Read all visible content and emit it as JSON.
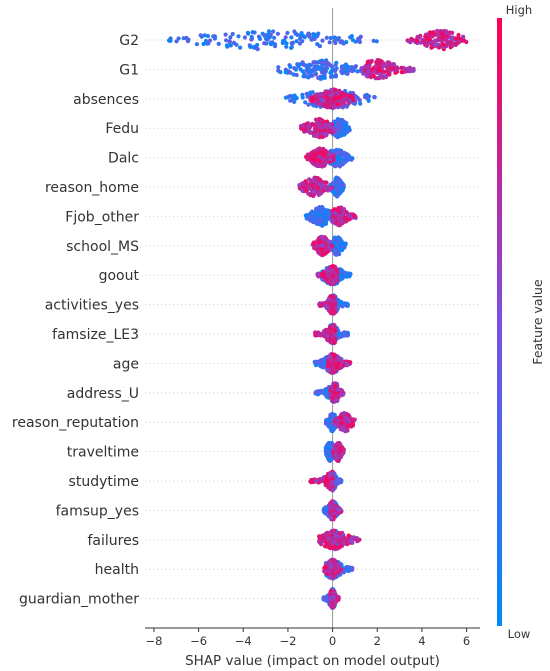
{
  "chart_data": {
    "type": "scatter",
    "subtype": "shap-beeswarm",
    "xlabel": "SHAP value (impact on model output)",
    "xlim": [
      -8.4,
      6.6
    ],
    "xticks": [
      -8,
      -6,
      -4,
      -2,
      0,
      2,
      4,
      6
    ],
    "colorbar": {
      "title": "Feature value",
      "high_label": "High",
      "low_label": "Low",
      "low_color": "#008afb",
      "mid_color": "#7c50e0",
      "high_color": "#ff0052"
    },
    "features": [
      {
        "name": "G2",
        "low_range": [
          -7.5,
          2.0
        ],
        "high_range": [
          3.3,
          6.0
        ],
        "peak": 4.8
      },
      {
        "name": "G1",
        "low_range": [
          -2.5,
          1.3
        ],
        "high_range": [
          1.3,
          3.7
        ],
        "peak": 2.0
      },
      {
        "name": "absences",
        "low_range": [
          -2.1,
          1.9
        ],
        "high_range": [
          -1.0,
          1.0
        ],
        "peak": 0.0
      },
      {
        "name": "Fedu",
        "low_range": [
          -0.2,
          0.8
        ],
        "high_range": [
          -1.5,
          0.1
        ],
        "peak": -0.6
      },
      {
        "name": "Dalc",
        "low_range": [
          -0.3,
          0.9
        ],
        "high_range": [
          -1.2,
          0.1
        ],
        "peak": 0.2
      },
      {
        "name": "reason_home",
        "low_range": [
          -0.1,
          0.5
        ],
        "high_range": [
          -1.5,
          0.0
        ],
        "peak": -0.8
      },
      {
        "name": "Fjob_other",
        "low_range": [
          -1.2,
          0.2
        ],
        "high_range": [
          0.0,
          1.1
        ],
        "peak": 0.3
      },
      {
        "name": "school_MS",
        "low_range": [
          -0.1,
          0.6
        ],
        "high_range": [
          -0.9,
          0.0
        ],
        "peak": 0.2
      },
      {
        "name": "goout",
        "low_range": [
          -0.5,
          0.8
        ],
        "high_range": [
          -0.7,
          0.2
        ],
        "peak": 0.0
      },
      {
        "name": "activities_yes",
        "low_range": [
          -0.1,
          0.7
        ],
        "high_range": [
          -0.6,
          0.1
        ],
        "peak": 0.0
      },
      {
        "name": "famsize_LE3",
        "low_range": [
          -0.1,
          0.7
        ],
        "high_range": [
          -0.8,
          0.1
        ],
        "peak": 0.0
      },
      {
        "name": "age",
        "low_range": [
          -0.8,
          0.4
        ],
        "high_range": [
          -0.2,
          0.8
        ],
        "peak": 0.0
      },
      {
        "name": "address_U",
        "low_range": [
          -0.8,
          0.2
        ],
        "high_range": [
          -0.1,
          0.5
        ],
        "peak": 0.1
      },
      {
        "name": "reason_reputation",
        "low_range": [
          -0.3,
          0.2
        ],
        "high_range": [
          0.1,
          1.0
        ],
        "peak": 0.0
      },
      {
        "name": "traveltime",
        "low_range": [
          -0.3,
          0.3
        ],
        "high_range": [
          0.0,
          0.5
        ],
        "peak": -0.1
      },
      {
        "name": "studytime",
        "low_range": [
          -0.1,
          0.4
        ],
        "high_range": [
          -1.0,
          0.0
        ],
        "peak": 0.0
      },
      {
        "name": "famsup_yes",
        "low_range": [
          -0.4,
          0.3
        ],
        "high_range": [
          -0.1,
          0.4
        ],
        "peak": 0.0
      },
      {
        "name": "failures",
        "low_range": [
          -0.2,
          0.3
        ],
        "high_range": [
          -0.6,
          1.2
        ],
        "peak": 0.1
      },
      {
        "name": "health",
        "low_range": [
          -0.3,
          0.9
        ],
        "high_range": [
          -0.4,
          0.4
        ],
        "peak": 0.0
      },
      {
        "name": "guardian_mother",
        "low_range": [
          -0.4,
          0.1
        ],
        "high_range": [
          -0.1,
          0.3
        ],
        "peak": 0.0
      }
    ]
  }
}
